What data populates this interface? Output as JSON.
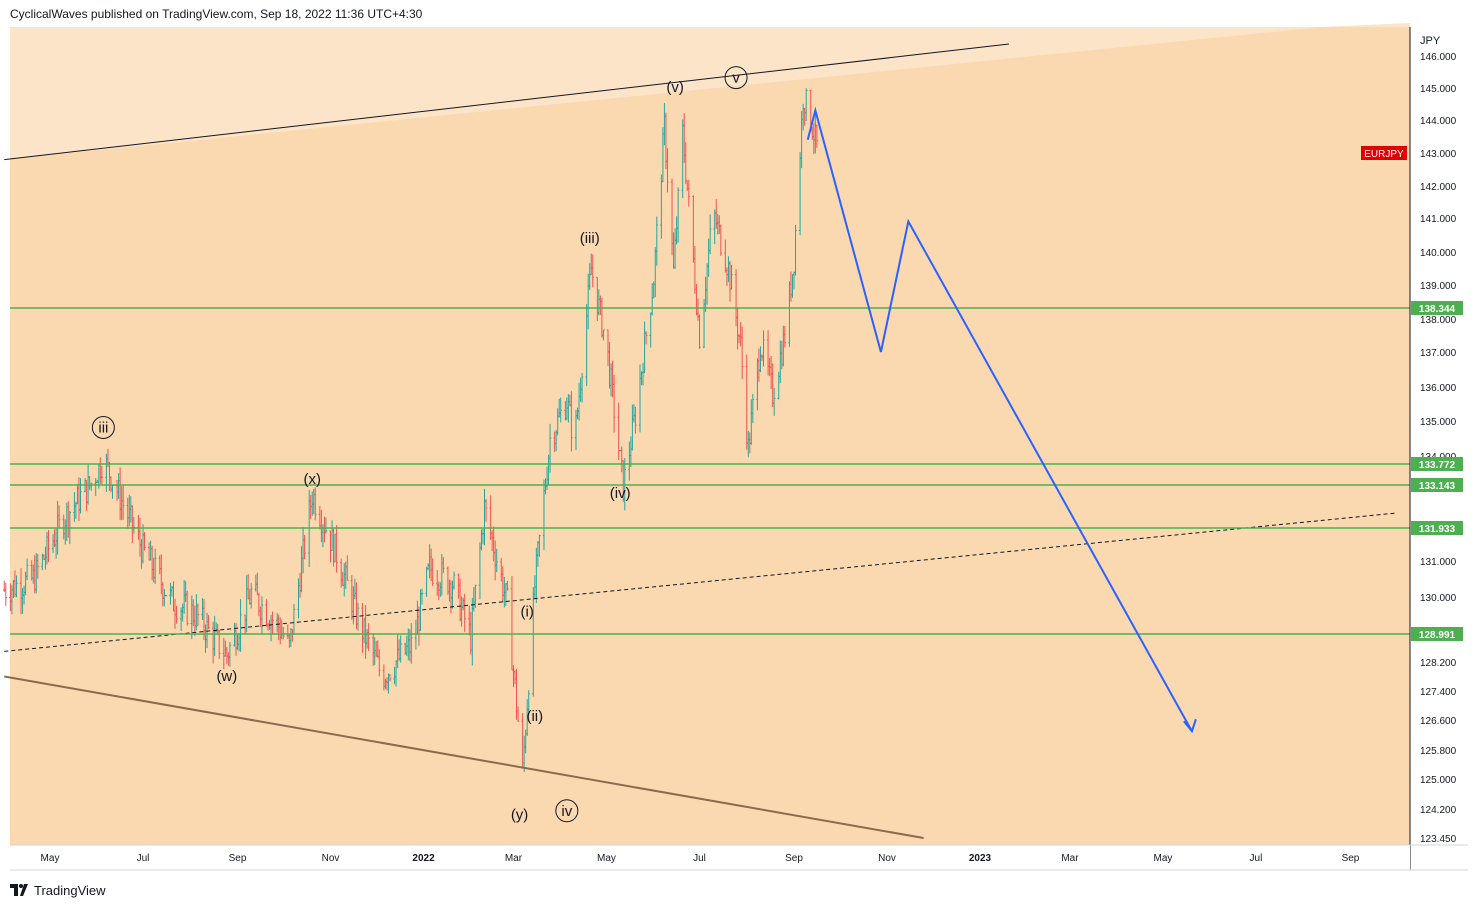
{
  "header": {
    "published": "CyclicalWaves published on TradingView.com, Sep 18, 2022 11:36 UTC+4:30"
  },
  "footer": {
    "brand": "TradingView"
  },
  "chart_data": {
    "type": "line",
    "symbol": "EURJPY",
    "currency": "JPY",
    "y_axis_labels": [
      "146.000",
      "145.000",
      "144.000",
      "143.000",
      "142.000",
      "141.000",
      "140.000",
      "139.000",
      "138.000",
      "137.000",
      "136.000",
      "135.000",
      "134.000",
      "131.000",
      "130.000",
      "128.200",
      "127.400",
      "126.600",
      "125.800",
      "125.000",
      "124.200",
      "123.450"
    ],
    "x_axis_labels": [
      "May",
      "Jul",
      "Sep",
      "Nov",
      "2022",
      "Mar",
      "May",
      "Jul",
      "Sep",
      "Nov",
      "2023",
      "Mar",
      "May",
      "Jul",
      "Sep"
    ],
    "horizontal_levels": [
      {
        "label": "138.344",
        "value": 138.344
      },
      {
        "label": "133.772",
        "value": 133.772
      },
      {
        "label": "133.143",
        "value": 133.143
      },
      {
        "label": "131.933",
        "value": 131.933
      },
      {
        "label": "128.991",
        "value": 128.991
      }
    ],
    "price_tag": {
      "label": "EURJPY",
      "value": 143.0
    },
    "wave_labels": [
      {
        "text": "iii",
        "circled": true,
        "date": "2021-06-05",
        "price": 134.7
      },
      {
        "text": "(x)",
        "circled": false,
        "date": "2021-10-20",
        "price": 133.2
      },
      {
        "text": "(w)",
        "circled": false,
        "date": "2021-08-25",
        "price": 127.7
      },
      {
        "text": "(iii)",
        "circled": false,
        "date": "2022-04-20",
        "price": 140.3
      },
      {
        "text": "(v)",
        "circled": false,
        "date": "2022-06-15",
        "price": 144.9
      },
      {
        "text": "v",
        "circled": true,
        "date": "2022-07-25",
        "price": 145.2
      },
      {
        "text": "(iv)",
        "circled": false,
        "date": "2022-05-10",
        "price": 132.8
      },
      {
        "text": "(i)",
        "circled": false,
        "date": "2022-03-10",
        "price": 129.5
      },
      {
        "text": "(ii)",
        "circled": false,
        "date": "2022-03-15",
        "price": 126.6
      },
      {
        "text": "(y)",
        "circled": false,
        "date": "2022-03-05",
        "price": 123.95
      },
      {
        "text": "iv",
        "circled": true,
        "date": "2022-04-05",
        "price": 124.05
      }
    ],
    "trendlines": [
      {
        "name": "channel-top",
        "style": "solid",
        "from": {
          "date": "2021-04-01",
          "price": 142.8
        },
        "to": {
          "date": "2023-01-20",
          "price": 146.4
        }
      },
      {
        "name": "channel-bottom",
        "style": "solid",
        "from": {
          "date": "2021-04-01",
          "price": 127.8
        },
        "to": {
          "date": "2022-11-25",
          "price": 123.45
        }
      },
      {
        "name": "dashed-support",
        "style": "dashed",
        "from": {
          "date": "2021-04-01",
          "price": 128.5
        },
        "to": {
          "date": "2023-09-30",
          "price": 132.35
        }
      }
    ],
    "projection": [
      {
        "date": "2022-09-10",
        "price": 143.4
      },
      {
        "date": "2022-09-15",
        "price": 144.3
      },
      {
        "date": "2022-10-28",
        "price": 137.0
      },
      {
        "date": "2022-11-15",
        "price": 140.9
      },
      {
        "date": "2023-05-20",
        "price": 126.3
      }
    ],
    "projection_color": "#2962ff",
    "level_color": "#4caf50",
    "bar_colors": {
      "up": "#26a69a",
      "down": "#ef5350"
    }
  }
}
